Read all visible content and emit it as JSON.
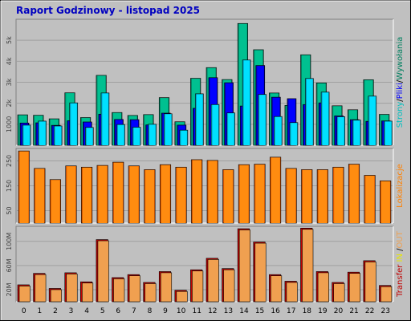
{
  "title": "Raport Godzinowy -  listopad 2025",
  "colors": {
    "frame_bg": "#c0c0c0",
    "plot_bg": "#c0c0c0",
    "title": "#0000c0",
    "strony_dark": "#00805f",
    "strony_light": "#00c090",
    "pliki_dark": "#0000a0",
    "pliki_light": "#0000ff",
    "wywolania_dark": "#00a0c0",
    "wywolania_light": "#00e0ff",
    "lokalizacje_dark": "#d05000",
    "lokalizacje_light": "#ff8c10",
    "in_dark": "#c00000",
    "in_light": "#e80000",
    "out_dark": "#c06000",
    "out_light": "#f0a050"
  },
  "chart_data": [
    {
      "type": "bar",
      "panel": "top",
      "categories": [
        "0",
        "1",
        "2",
        "3",
        "4",
        "5",
        "6",
        "7",
        "8",
        "9",
        "10",
        "11",
        "12",
        "13",
        "14",
        "15",
        "16",
        "17",
        "18",
        "19",
        "20",
        "21",
        "22",
        "23"
      ],
      "series": [
        {
          "name": "Strony",
          "values": [
            1450,
            1430,
            1260,
            2500,
            1320,
            3330,
            1560,
            1420,
            1460,
            2270,
            1120,
            3190,
            3700,
            3130,
            5800,
            4550,
            2490,
            1900,
            4310,
            2970,
            1880,
            1690,
            3120,
            1470
          ]
        },
        {
          "name": "Pliki",
          "values": [
            1060,
            1070,
            950,
            1170,
            1110,
            1480,
            1230,
            1220,
            970,
            1530,
            960,
            1760,
            3220,
            2980,
            1870,
            3800,
            2290,
            2220,
            1940,
            2020,
            1400,
            1220,
            1140,
            1160
          ]
        },
        {
          "name": "Wywołania",
          "values": [
            960,
            1150,
            920,
            2020,
            850,
            2490,
            990,
            860,
            1000,
            1500,
            720,
            2450,
            1940,
            1540,
            4060,
            2420,
            1370,
            1080,
            3180,
            2530,
            1360,
            1200,
            2340,
            1150
          ]
        }
      ],
      "ytick_labels": [
        "1000",
        "2k",
        "3k",
        "4k",
        "5k"
      ],
      "ytick_values": [
        1000,
        2000,
        3000,
        4000,
        5000
      ],
      "ylim": [
        0,
        6000
      ],
      "grid": true,
      "ylabel_parts": [
        {
          "text": "Strony",
          "color": "#00c0c0"
        },
        {
          "text": "/",
          "color": "#000000"
        },
        {
          "text": "Pliki",
          "color": "#0000ff"
        },
        {
          "text": "/",
          "color": "#000000"
        },
        {
          "text": "Wywołania",
          "color": "#008060"
        }
      ]
    },
    {
      "type": "bar",
      "panel": "middle",
      "categories": [
        "0",
        "1",
        "2",
        "3",
        "4",
        "5",
        "6",
        "7",
        "8",
        "9",
        "10",
        "11",
        "12",
        "13",
        "14",
        "15",
        "16",
        "17",
        "18",
        "19",
        "20",
        "21",
        "22",
        "23"
      ],
      "series": [
        {
          "name": "Lokalizacje",
          "values": [
            290,
            220,
            175,
            230,
            225,
            232,
            245,
            230,
            215,
            235,
            225,
            255,
            252,
            215,
            235,
            237,
            265,
            220,
            215,
            215,
            225,
            237,
            192,
            170
          ]
        }
      ],
      "ytick_labels": [
        "50",
        "150",
        "250"
      ],
      "ytick_values": [
        50,
        150,
        250
      ],
      "ylim": [
        0,
        300
      ],
      "grid": true,
      "ylabel_parts": [
        {
          "text": "Lokalizacje",
          "color": "#ff8000"
        }
      ]
    },
    {
      "type": "bar",
      "panel": "bottom",
      "categories": [
        "0",
        "1",
        "2",
        "3",
        "4",
        "5",
        "6",
        "7",
        "8",
        "9",
        "10",
        "11",
        "12",
        "13",
        "14",
        "15",
        "16",
        "17",
        "18",
        "19",
        "20",
        "21",
        "22",
        "23"
      ],
      "series": [
        {
          "name": "IN",
          "values": [
            0,
            0,
            0,
            0,
            0,
            0,
            0,
            0,
            0,
            0,
            0,
            0,
            0,
            0,
            0,
            0,
            0,
            0,
            0,
            0,
            0,
            0,
            0,
            0
          ]
        },
        {
          "name": "OUT",
          "values": [
            28,
            47,
            22,
            48,
            33,
            103,
            40,
            45,
            32,
            50,
            19,
            53,
            72,
            55,
            121,
            99,
            45,
            34,
            122,
            50,
            32,
            49,
            68,
            27
          ]
        }
      ],
      "ytick_labels": [
        "20M",
        "60M",
        "100M"
      ],
      "ytick_values": [
        20,
        60,
        100
      ],
      "ylim": [
        0,
        125
      ],
      "grid": true,
      "ylabel_parts": [
        {
          "text": "Transfer",
          "color": "#c00000"
        },
        {
          "text": " ",
          "color": "#000000"
        },
        {
          "text": "IN",
          "color": "#e8e800"
        },
        {
          "text": " /",
          "color": "#000000"
        },
        {
          "text": "OUT",
          "color": "#f0a050"
        }
      ]
    }
  ]
}
